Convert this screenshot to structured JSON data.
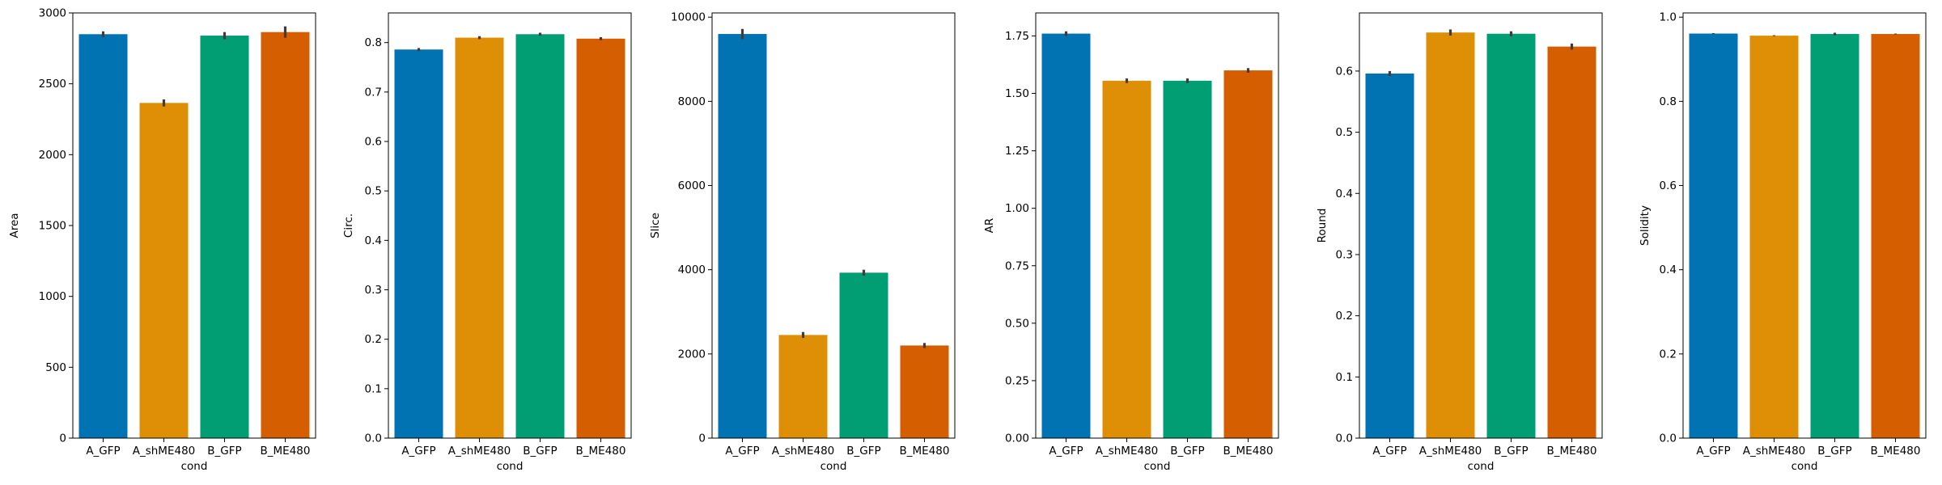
{
  "palette": [
    "#0173b2",
    "#de8f05",
    "#029e73",
    "#d55e00"
  ],
  "chart_data": [
    {
      "type": "bar",
      "categories": [
        "A_GFP",
        "A_shME480",
        "B_GFP",
        "B_ME480"
      ],
      "values": [
        2850,
        2365,
        2840,
        2865
      ],
      "error_low": [
        2830,
        2340,
        2815,
        2825
      ],
      "error_high": [
        2870,
        2390,
        2865,
        2905
      ],
      "xlabel": "cond",
      "ylabel": "Area",
      "ylim": [
        0,
        3000
      ],
      "yticks": [
        0,
        500,
        1000,
        1500,
        2000,
        2500,
        3000
      ],
      "ytick_labels": [
        "0",
        "500",
        "1000",
        "1500",
        "2000",
        "2500",
        "3000"
      ]
    },
    {
      "type": "bar",
      "categories": [
        "A_GFP",
        "A_shME480",
        "B_GFP",
        "B_ME480"
      ],
      "values": [
        0.786,
        0.81,
        0.817,
        0.808
      ],
      "error_low": [
        0.783,
        0.807,
        0.814,
        0.805
      ],
      "error_high": [
        0.789,
        0.813,
        0.82,
        0.811
      ],
      "xlabel": "cond",
      "ylabel": "Circ.",
      "ylim": [
        0,
        0.86
      ],
      "yticks": [
        0,
        0.1,
        0.2,
        0.3,
        0.4,
        0.5,
        0.6,
        0.7,
        0.8
      ],
      "ytick_labels": [
        "0.0",
        "0.1",
        "0.2",
        "0.3",
        "0.4",
        "0.5",
        "0.6",
        "0.7",
        "0.8"
      ]
    },
    {
      "type": "bar",
      "categories": [
        "A_GFP",
        "A_shME480",
        "B_GFP",
        "B_ME480"
      ],
      "values": [
        9600,
        2450,
        3930,
        2200
      ],
      "error_low": [
        9480,
        2380,
        3860,
        2140
      ],
      "error_high": [
        9720,
        2520,
        4000,
        2260
      ],
      "xlabel": "cond",
      "ylabel": "Slice",
      "ylim": [
        0,
        10100
      ],
      "yticks": [
        0,
        2000,
        4000,
        6000,
        8000,
        10000
      ],
      "ytick_labels": [
        "0",
        "2000",
        "4000",
        "6000",
        "8000",
        "10000"
      ]
    },
    {
      "type": "bar",
      "categories": [
        "A_GFP",
        "A_shME480",
        "B_GFP",
        "B_ME480"
      ],
      "values": [
        1.76,
        1.555,
        1.555,
        1.6
      ],
      "error_low": [
        1.75,
        1.545,
        1.545,
        1.59
      ],
      "error_high": [
        1.77,
        1.565,
        1.565,
        1.61
      ],
      "xlabel": "cond",
      "ylabel": "AR",
      "ylim": [
        0,
        1.85
      ],
      "yticks": [
        0,
        0.25,
        0.5,
        0.75,
        1.0,
        1.25,
        1.5,
        1.75
      ],
      "ytick_labels": [
        "0.00",
        "0.25",
        "0.50",
        "0.75",
        "1.00",
        "1.25",
        "1.50",
        "1.75"
      ]
    },
    {
      "type": "bar",
      "categories": [
        "A_GFP",
        "A_shME480",
        "B_GFP",
        "B_ME480"
      ],
      "values": [
        0.596,
        0.663,
        0.661,
        0.64
      ],
      "error_low": [
        0.592,
        0.658,
        0.657,
        0.635
      ],
      "error_high": [
        0.6,
        0.668,
        0.665,
        0.645
      ],
      "xlabel": "cond",
      "ylabel": "Round",
      "ylim": [
        0,
        0.695
      ],
      "yticks": [
        0,
        0.1,
        0.2,
        0.3,
        0.4,
        0.5,
        0.6
      ],
      "ytick_labels": [
        "0.0",
        "0.1",
        "0.2",
        "0.3",
        "0.4",
        "0.5",
        "0.6"
      ]
    },
    {
      "type": "bar",
      "categories": [
        "A_GFP",
        "A_shME480",
        "B_GFP",
        "B_ME480"
      ],
      "values": [
        0.961,
        0.956,
        0.96,
        0.96
      ],
      "error_low": [
        0.96,
        0.955,
        0.957,
        0.959
      ],
      "error_high": [
        0.962,
        0.957,
        0.963,
        0.961
      ],
      "xlabel": "cond",
      "ylabel": "Solidity",
      "ylim": [
        0,
        1.01
      ],
      "yticks": [
        0,
        0.2,
        0.4,
        0.6,
        0.8,
        1.0
      ],
      "ytick_labels": [
        "0.0",
        "0.2",
        "0.4",
        "0.6",
        "0.8",
        "1.0"
      ]
    }
  ]
}
